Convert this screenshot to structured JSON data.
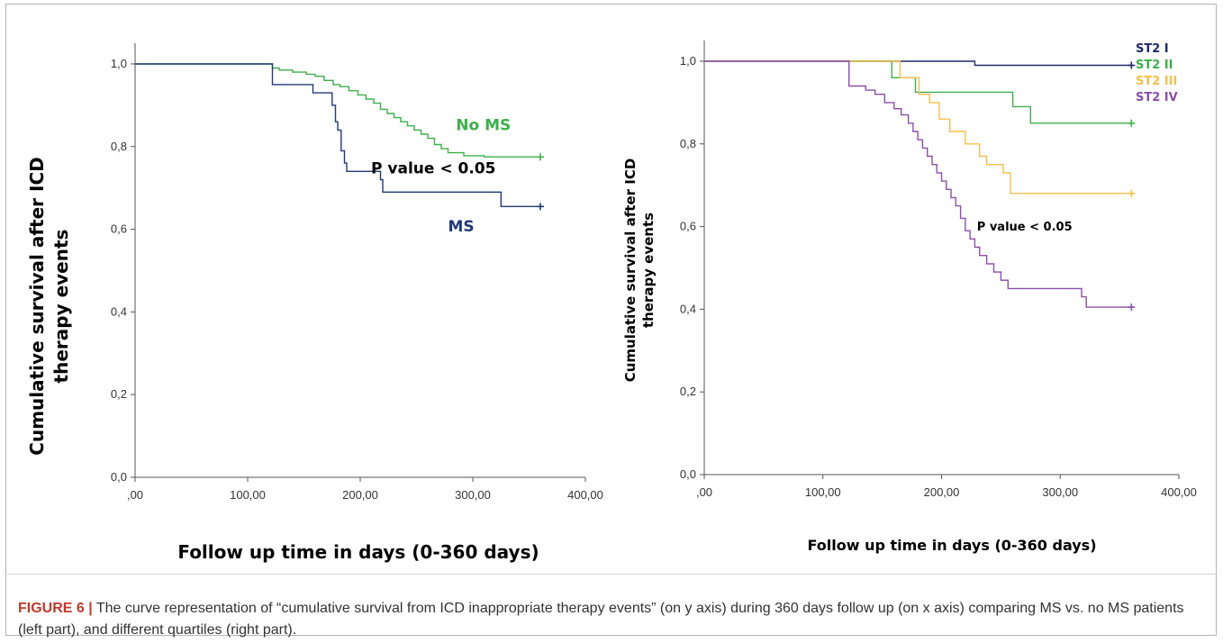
{
  "figure": {
    "caption_label": "FIGURE 6 |",
    "caption_text": " The curve representation of “cumulative survival from ICD inappropriate therapy events” (on y axis) during 360 days follow up (on x axis) comparing MS vs. no MS patients (left part), and different quartiles (right part)."
  },
  "chart_data": [
    {
      "type": "line",
      "title": "",
      "xlabel": "Follow up time in days (0-360 days)",
      "ylabel": "Cumulative survival after ICD therapy events",
      "xlim": [
        0,
        400
      ],
      "ylim": [
        0,
        1.05
      ],
      "x_ticks": [
        0,
        100,
        200,
        300,
        400
      ],
      "x_tick_labels": [
        ",00",
        "100,00",
        "200,00",
        "300,00",
        "400,00"
      ],
      "y_ticks": [
        0,
        0.2,
        0.4,
        0.6,
        0.8,
        1.0
      ],
      "y_tick_labels": [
        "0,0",
        "0,2",
        "0,4",
        "0,6",
        "0,8",
        "1,0"
      ],
      "grid": false,
      "annotations": [
        {
          "text": "P value < 0.05",
          "x": 265,
          "y": 0.735,
          "color": "#000000"
        }
      ],
      "series": [
        {
          "name": "No MS",
          "color": "#3cb04a",
          "label_pos": {
            "x": 285,
            "y": 0.84
          },
          "censor": [
            360,
            0.775
          ],
          "steps": [
            [
              0,
              1.0
            ],
            [
              118,
              1.0
            ],
            [
              122,
              0.99
            ],
            [
              128,
              0.985
            ],
            [
              140,
              0.98
            ],
            [
              152,
              0.975
            ],
            [
              160,
              0.97
            ],
            [
              168,
              0.96
            ],
            [
              176,
              0.95
            ],
            [
              182,
              0.945
            ],
            [
              190,
              0.935
            ],
            [
              198,
              0.925
            ],
            [
              205,
              0.915
            ],
            [
              212,
              0.905
            ],
            [
              218,
              0.89
            ],
            [
              224,
              0.88
            ],
            [
              230,
              0.87
            ],
            [
              236,
              0.86
            ],
            [
              242,
              0.85
            ],
            [
              248,
              0.84
            ],
            [
              254,
              0.83
            ],
            [
              260,
              0.82
            ],
            [
              266,
              0.805
            ],
            [
              272,
              0.795
            ],
            [
              278,
              0.785
            ],
            [
              292,
              0.778
            ],
            [
              310,
              0.775
            ],
            [
              360,
              0.775
            ]
          ]
        },
        {
          "name": "MS",
          "color": "#1f3a75",
          "label_pos": {
            "x": 278,
            "y": 0.595
          },
          "censor": [
            360,
            0.655
          ],
          "steps": [
            [
              0,
              1.0
            ],
            [
              120,
              1.0
            ],
            [
              122,
              0.95
            ],
            [
              155,
              0.95
            ],
            [
              158,
              0.93
            ],
            [
              172,
              0.93
            ],
            [
              175,
              0.9
            ],
            [
              178,
              0.86
            ],
            [
              180,
              0.84
            ],
            [
              183,
              0.79
            ],
            [
              186,
              0.76
            ],
            [
              188,
              0.74
            ],
            [
              215,
              0.74
            ],
            [
              218,
              0.72
            ],
            [
              220,
              0.69
            ],
            [
              322,
              0.69
            ],
            [
              325,
              0.655
            ],
            [
              360,
              0.655
            ]
          ]
        }
      ]
    },
    {
      "type": "line",
      "title": "",
      "xlabel": "Follow up time in days (0-360 days)",
      "ylabel": "Cumulative survival after ICD therapy events",
      "xlim": [
        0,
        400
      ],
      "ylim": [
        0,
        1.05
      ],
      "x_ticks": [
        0,
        100,
        200,
        300,
        400
      ],
      "x_tick_labels": [
        ",00",
        "100,00",
        "200,00",
        "300,00",
        "400,00"
      ],
      "y_ticks": [
        0,
        0.2,
        0.4,
        0.6,
        0.8,
        1.0
      ],
      "y_tick_labels": [
        "0,0",
        "0,2",
        "0,4",
        "0,6",
        "0,8",
        "1,0"
      ],
      "grid": false,
      "legend": "top-right",
      "annotations": [
        {
          "text": "P value < 0.05",
          "x": 270,
          "y": 0.59,
          "color": "#000000"
        }
      ],
      "series": [
        {
          "name": "ST2 I",
          "color": "#1f2a6b",
          "censor": [
            360,
            0.99
          ],
          "steps": [
            [
              0,
              1.0
            ],
            [
              225,
              1.0
            ],
            [
              228,
              0.99
            ],
            [
              360,
              0.99
            ]
          ]
        },
        {
          "name": "ST2 II",
          "color": "#3cb04a",
          "censor": [
            360,
            0.85
          ],
          "steps": [
            [
              0,
              1.0
            ],
            [
              155,
              1.0
            ],
            [
              158,
              0.96
            ],
            [
              175,
              0.96
            ],
            [
              178,
              0.925
            ],
            [
              258,
              0.925
            ],
            [
              260,
              0.89
            ],
            [
              272,
              0.89
            ],
            [
              275,
              0.85
            ],
            [
              360,
              0.85
            ]
          ]
        },
        {
          "name": "ST2 III",
          "color": "#f5c04a",
          "censor": [
            360,
            0.68
          ],
          "steps": [
            [
              0,
              1.0
            ],
            [
              162,
              1.0
            ],
            [
              165,
              0.96
            ],
            [
              178,
              0.96
            ],
            [
              181,
              0.92
            ],
            [
              190,
              0.9
            ],
            [
              198,
              0.86
            ],
            [
              207,
              0.83
            ],
            [
              220,
              0.8
            ],
            [
              232,
              0.77
            ],
            [
              238,
              0.75
            ],
            [
              252,
              0.73
            ],
            [
              258,
              0.68
            ],
            [
              360,
              0.68
            ]
          ]
        },
        {
          "name": "ST2 IV",
          "color": "#8b4fa8",
          "censor": [
            360,
            0.405
          ],
          "steps": [
            [
              0,
              1.0
            ],
            [
              120,
              1.0
            ],
            [
              122,
              0.94
            ],
            [
              136,
              0.93
            ],
            [
              144,
              0.92
            ],
            [
              152,
              0.9
            ],
            [
              160,
              0.885
            ],
            [
              166,
              0.87
            ],
            [
              172,
              0.85
            ],
            [
              176,
              0.83
            ],
            [
              180,
              0.81
            ],
            [
              184,
              0.79
            ],
            [
              188,
              0.77
            ],
            [
              192,
              0.75
            ],
            [
              196,
              0.73
            ],
            [
              200,
              0.71
            ],
            [
              204,
              0.69
            ],
            [
              208,
              0.67
            ],
            [
              212,
              0.65
            ],
            [
              216,
              0.62
            ],
            [
              220,
              0.59
            ],
            [
              224,
              0.57
            ],
            [
              228,
              0.55
            ],
            [
              232,
              0.53
            ],
            [
              238,
              0.51
            ],
            [
              244,
              0.49
            ],
            [
              250,
              0.47
            ],
            [
              256,
              0.45
            ],
            [
              312,
              0.45
            ],
            [
              318,
              0.43
            ],
            [
              322,
              0.405
            ],
            [
              360,
              0.405
            ]
          ]
        }
      ]
    }
  ]
}
